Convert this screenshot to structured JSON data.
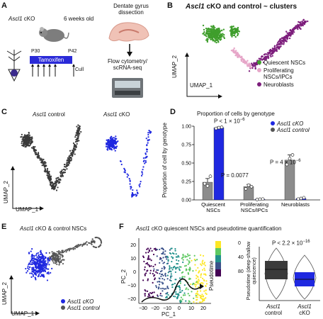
{
  "colors": {
    "quiescent": "#3f9e2c",
    "proliferating": "#e6a6c8",
    "neuroblasts": "#7d1e7c",
    "cko": "#1f28e0",
    "control": "#3a3a3a",
    "tamoxifen_bar": "#2a2ad8"
  },
  "panels": {
    "A": {
      "label": "A",
      "genotype": "Ascl1",
      "cko_suffix": " cKO",
      "age": "6 weeks old",
      "p30": "P30",
      "p42": "P42",
      "tamoxifen": "Tamoxifen",
      "cull": "Cull",
      "dissection": "Dentate gyrus dissection",
      "flow": "Flow cytometry/ scRNA-seq",
      "icons": [
        "mouse-icon",
        "neuron-icon",
        "brain-slice-icon",
        "arrow-down-icon",
        "sequencer-icon"
      ]
    },
    "B": {
      "label": "B",
      "title_italic": "Ascl1",
      "title_rest": " cKO and control ~ clusters",
      "x_axis": "UMAP_1",
      "y_axis": "UMAP_2",
      "legend": [
        {
          "name": "Quiescent NSCs",
          "color_key": "quiescent"
        },
        {
          "name": "Proliferating NSCs/IPCs",
          "color_key": "proliferating"
        },
        {
          "name": "Neuroblasts",
          "color_key": "neuroblasts"
        }
      ]
    },
    "C": {
      "label": "C",
      "left_title_italic": "Ascl1",
      "left_title_rest": " control",
      "right_title_italic": "Ascl1",
      "right_title_rest": " cKO",
      "x_axis": "UMAP_1",
      "y_axis": "UMAP_2"
    },
    "D": {
      "label": "D",
      "title": "Proportion of cells by genotype",
      "legend_cko": "Ascl1 cKO",
      "legend_control": "Ascl1 control",
      "ylabel": "Proportion of cell by genotype",
      "p1": "P < 1 × 10",
      "p1_exp": "−6",
      "p2": "P = 0.0077",
      "p3": "P = 4 × 10",
      "p3_exp": "−6",
      "ticks": [
        "0.00",
        "0.25",
        "0.50",
        "0.75",
        "1.00"
      ]
    },
    "E": {
      "label": "E",
      "title_italic": "Ascl1",
      "title_rest": " cKO & control NSCs",
      "x_axis": "UMAP_1",
      "y_axis": "UMAP_2",
      "legend_cko": "Ascl1 cKO",
      "legend_control": "Ascl1 control"
    },
    "F": {
      "label": "F",
      "title_italic": "Ascl1",
      "title_rest": " cKO quiescent NSCs and pseudotime quantification",
      "x_axis": "PC_1",
      "y_axis": "PC_2",
      "x_ticks": [
        "−30",
        "−20",
        "−10",
        "0",
        "10",
        "20"
      ],
      "y_ticks": [
        "20",
        "10",
        "0",
        "−10",
        "−20"
      ],
      "colorbar_title": "Pseudotime",
      "colorbar_ticks": [
        "0",
        "40",
        "80"
      ],
      "violin_ylabel": "Pseudotime (deep-shallow quiescence)",
      "violin_p": "P < 2.2 × 10",
      "violin_p_exp": "−16",
      "violin_x1_italic": "Ascl1",
      "violin_x1_rest": "control",
      "violin_x2_italic": "Ascl1",
      "violin_x2_rest": "cKO"
    }
  },
  "chart_data": {
    "type": "bar",
    "title": "Proportion of cells by genotype",
    "categories": [
      "Quiescent NSCs",
      "Proliferating NSCs/IPCs",
      "Neuroblasts"
    ],
    "ylabel": "Proportion of cell by genotype",
    "ylim": [
      0,
      1.0
    ],
    "series": [
      {
        "name": "Ascl1 control",
        "color": "#8c8c8c",
        "values": [
          0.24,
          0.18,
          0.54
        ],
        "errors": [
          0.05,
          0.03,
          0.07
        ],
        "points": [
          [
            0.22,
            0.19,
            0.32
          ],
          [
            0.15,
            0.2,
            0.18
          ],
          [
            0.48,
            0.56,
            0.61
          ]
        ]
      },
      {
        "name": "Ascl1 cKO",
        "color": "#1f28e0",
        "values": [
          0.98,
          0.01,
          0.02
        ],
        "errors": [
          0.01,
          0.0,
          0.005
        ],
        "points": [
          [
            0.97,
            0.98,
            0.985
          ],
          [
            0.005,
            0.01,
            0.012
          ],
          [
            0.012,
            0.02,
            0.03
          ]
        ]
      }
    ],
    "annotations": [
      "P < 1 × 10−6",
      "P = 0.0077",
      "P = 4 × 10−6"
    ],
    "legend_position": "top-right"
  }
}
